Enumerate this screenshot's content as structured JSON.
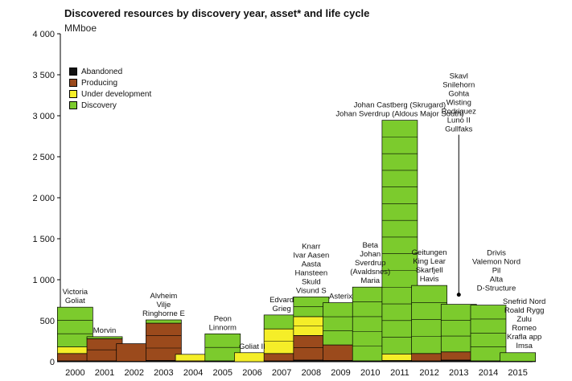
{
  "chart_data": {
    "type": "bar",
    "title": "Discovered resources by discovery year, asset* and life cycle",
    "ylabel": "MMboe",
    "ylim": [
      0,
      4000
    ],
    "yticks": [
      "0",
      "500",
      "1 000",
      "1 500",
      "2 000",
      "2 500",
      "3 000",
      "3 500",
      "4 000"
    ],
    "categories": [
      "2000",
      "2001",
      "2002",
      "2003",
      "2004",
      "2005",
      "2006",
      "2007",
      "2008",
      "2009",
      "2010",
      "2011",
      "2012",
      "2013",
      "2014",
      "2015"
    ],
    "legend": [
      {
        "name": "Abandoned",
        "color": "#111111"
      },
      {
        "name": "Producing",
        "color": "#9b4a1c"
      },
      {
        "name": "Under development",
        "color": "#f5ee28"
      },
      {
        "name": "Discovery",
        "color": "#7ccb2d"
      }
    ],
    "series": [
      {
        "name": "Abandoned",
        "values": [
          10,
          10,
          5,
          15,
          0,
          10,
          0,
          10,
          20,
          15,
          10,
          15,
          10,
          20,
          10,
          5
        ]
      },
      {
        "name": "Producing",
        "values": [
          90,
          270,
          215,
          455,
          10,
          0,
          0,
          90,
          300,
          190,
          0,
          0,
          90,
          100,
          0,
          0
        ]
      },
      {
        "name": "Under development",
        "values": [
          80,
          0,
          0,
          0,
          80,
          0,
          110,
          300,
          230,
          0,
          0,
          80,
          0,
          0,
          0,
          0
        ]
      },
      {
        "name": "Discovery",
        "values": [
          485,
          25,
          0,
          40,
          0,
          330,
          0,
          170,
          240,
          515,
          900,
          2850,
          830,
          580,
          680,
          105
        ]
      }
    ],
    "annotations": [
      {
        "year": "2000",
        "lines": [
          "Victoria",
          "Goliat"
        ]
      },
      {
        "year": "2001",
        "lines": [
          "Morvin"
        ]
      },
      {
        "year": "2003",
        "lines": [
          "Alvheim",
          "Vilje",
          "Ringhorne E"
        ]
      },
      {
        "year": "2005",
        "lines": [
          "Peon",
          "Linnorm"
        ]
      },
      {
        "year": "2006",
        "lines": [
          "Goliat II"
        ]
      },
      {
        "year": "2007",
        "lines": [
          "Edvard",
          "Grieg"
        ]
      },
      {
        "year": "2008",
        "lines": [
          "Knarr",
          "Ivar Aasen",
          "Aasta",
          "Hansteen",
          "Skuld",
          "Visund S"
        ]
      },
      {
        "year": "2009",
        "lines": [
          "Asterix"
        ]
      },
      {
        "year": "2010",
        "lines": [
          "Beta",
          "Johan",
          "Sverdrup",
          "(Avaldsnes)",
          "Maria"
        ]
      },
      {
        "year": "2011",
        "lines": [
          "Johan Castberg (Skrugard)",
          "Johan Sverdrup (Aldous Major South)"
        ]
      },
      {
        "year": "2012",
        "lines": [
          "Geitungen",
          "King Lear",
          "Skarfjell",
          "Havis"
        ]
      },
      {
        "year": "2013",
        "lines": [
          "Skavl",
          "Snilehorn",
          "Gohta",
          "Wisting",
          "Rodriguez",
          "Luno II",
          "Gullfaks"
        ]
      },
      {
        "year": "2014",
        "lines": [
          "Drivis",
          "Valemon Nord",
          "Pil",
          "Alta",
          "D-Structure"
        ]
      },
      {
        "year": "2015",
        "lines": [
          "Snefrid Nord",
          "Roald Rygg",
          "Zulu",
          "Romeo",
          "Krafla app",
          "Imsa"
        ]
      }
    ]
  }
}
